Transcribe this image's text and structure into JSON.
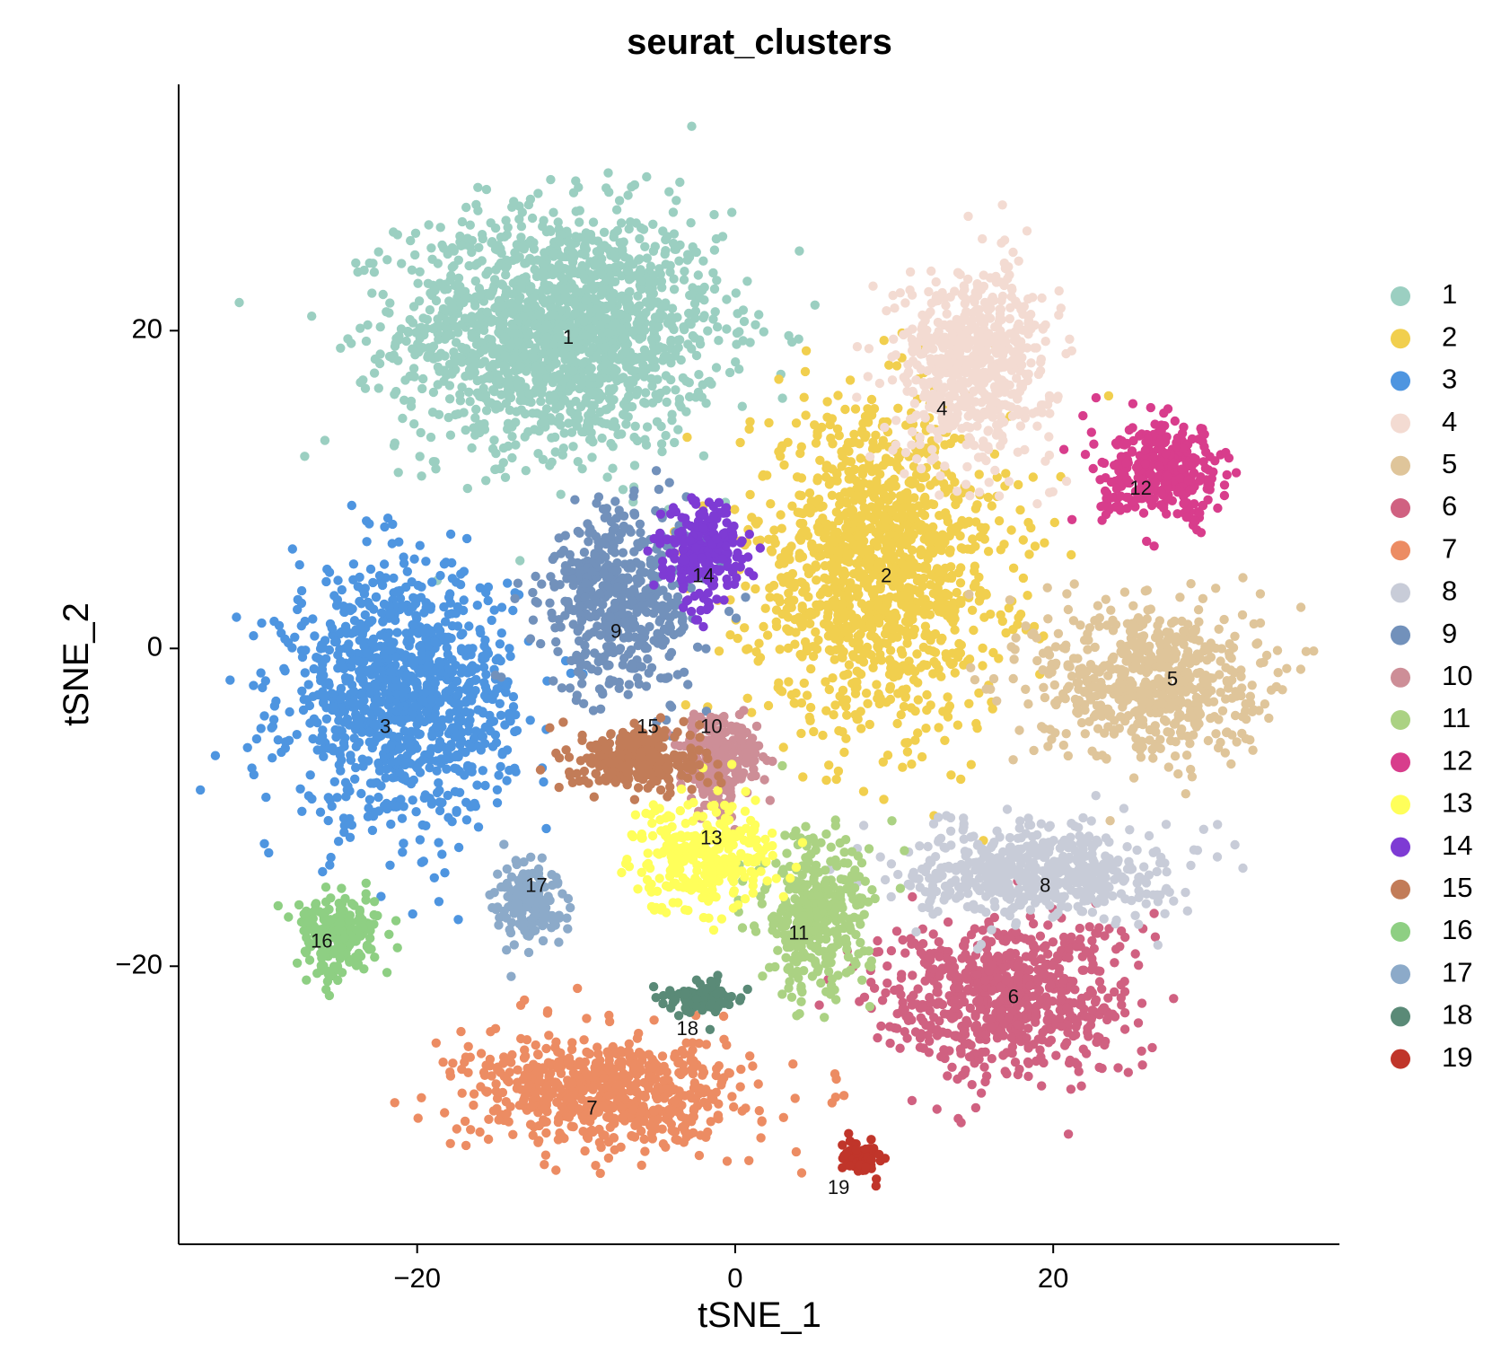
{
  "chart_data": {
    "type": "scatter",
    "title": "seurat_clusters",
    "xlabel": "tSNE_1",
    "ylabel": "tSNE_2",
    "xlim": [
      -35,
      38
    ],
    "ylim": [
      -37.5,
      35.5
    ],
    "xticks": [
      -20,
      0,
      20
    ],
    "yticks": [
      -20,
      0,
      20
    ],
    "xtick_labels": [
      "−20",
      "0",
      "20"
    ],
    "ytick_labels": [
      "−20",
      "0",
      "20"
    ],
    "grid": false,
    "legend_position": "right",
    "legend_title": "",
    "clusters": [
      {
        "name": "1",
        "color": "#9bcfc1",
        "label_pos": [
          -10.5,
          19.5
        ],
        "center": [
          -11,
          20
        ],
        "spread": [
          10,
          7.5
        ],
        "n": 1700
      },
      {
        "name": "2",
        "color": "#f1cf4e",
        "label_pos": [
          9.5,
          4.5
        ],
        "center": [
          9,
          5
        ],
        "spread": [
          8,
          10
        ],
        "n": 1300
      },
      {
        "name": "3",
        "color": "#4e95e0",
        "label_pos": [
          -22,
          -5
        ],
        "center": [
          -21,
          -3
        ],
        "spread": [
          7,
          8
        ],
        "n": 1100
      },
      {
        "name": "4",
        "color": "#f3dbd2",
        "label_pos": [
          13,
          15
        ],
        "center": [
          15,
          18
        ],
        "spread": [
          5,
          6
        ],
        "n": 600
      },
      {
        "name": "5",
        "color": "#dfc59a",
        "label_pos": [
          27.5,
          -2
        ],
        "center": [
          26,
          -2
        ],
        "spread": [
          7,
          5
        ],
        "n": 600
      },
      {
        "name": "6",
        "color": "#d06181",
        "label_pos": [
          17.5,
          -22
        ],
        "center": [
          17,
          -22
        ],
        "spread": [
          8,
          5
        ],
        "n": 700
      },
      {
        "name": "7",
        "color": "#ec8c63",
        "label_pos": [
          -9,
          -29
        ],
        "center": [
          -8,
          -28
        ],
        "spread": [
          9,
          3.5
        ],
        "n": 650
      },
      {
        "name": "8",
        "color": "#c8ccd8",
        "label_pos": [
          19.5,
          -15
        ],
        "center": [
          19,
          -14
        ],
        "spread": [
          8,
          3
        ],
        "n": 550
      },
      {
        "name": "9",
        "color": "#7291bb",
        "label_pos": [
          -7.5,
          1
        ],
        "center": [
          -7,
          3
        ],
        "spread": [
          5,
          6
        ],
        "n": 500
      },
      {
        "name": "10",
        "color": "#cd8e97",
        "label_pos": [
          -1.5,
          -5
        ],
        "center": [
          -1,
          -7
        ],
        "spread": [
          2.5,
          3
        ],
        "n": 260
      },
      {
        "name": "11",
        "color": "#abd283",
        "label_pos": [
          4,
          -18
        ],
        "center": [
          5,
          -17
        ],
        "spread": [
          3.5,
          5
        ],
        "n": 350
      },
      {
        "name": "12",
        "color": "#d83d8c",
        "label_pos": [
          25.5,
          10
        ],
        "center": [
          27,
          11
        ],
        "spread": [
          4,
          3
        ],
        "n": 330
      },
      {
        "name": "13",
        "color": "#ffff5a",
        "label_pos": [
          -1.5,
          -12
        ],
        "center": [
          -2,
          -13
        ],
        "spread": [
          4.5,
          3.5
        ],
        "n": 300
      },
      {
        "name": "14",
        "color": "#7e3bd4",
        "label_pos": [
          -2,
          4.5
        ],
        "center": [
          -2,
          6
        ],
        "spread": [
          2.5,
          3
        ],
        "n": 250
      },
      {
        "name": "15",
        "color": "#c27c58",
        "label_pos": [
          -5.5,
          -5
        ],
        "center": [
          -6,
          -7
        ],
        "spread": [
          4,
          2
        ],
        "n": 280
      },
      {
        "name": "16",
        "color": "#8ecf83",
        "label_pos": [
          -26,
          -18.5
        ],
        "center": [
          -25,
          -18
        ],
        "spread": [
          2.5,
          2.5
        ],
        "n": 220
      },
      {
        "name": "17",
        "color": "#8caac9",
        "label_pos": [
          -12.5,
          -15
        ],
        "center": [
          -13,
          -16
        ],
        "spread": [
          2,
          2.5
        ],
        "n": 160
      },
      {
        "name": "18",
        "color": "#5a8a77",
        "label_pos": [
          -3,
          -24
        ],
        "center": [
          -2,
          -22
        ],
        "spread": [
          2,
          1
        ],
        "n": 110
      },
      {
        "name": "19",
        "color": "#c0352a",
        "label_pos": [
          6.5,
          -34
        ],
        "center": [
          8,
          -32
        ],
        "spread": [
          1.3,
          1
        ],
        "n": 80
      }
    ]
  }
}
